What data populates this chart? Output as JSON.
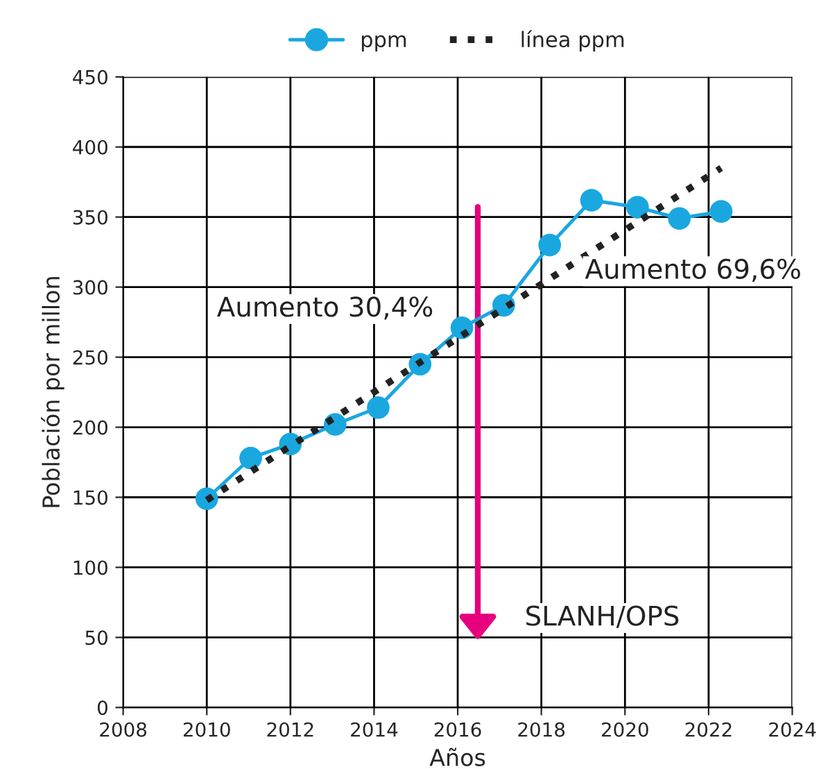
{
  "chart_data": {
    "type": "line",
    "xlabel": "Años",
    "ylabel": "Población por millon",
    "series": [
      {
        "name": "ppm",
        "color": "#1aa7e0",
        "marker": "circle",
        "line_style": "solid",
        "x": [
          2010.0,
          2011.05,
          2012.0,
          2013.07,
          2014.1,
          2015.1,
          2016.1,
          2017.1,
          2018.2,
          2019.2,
          2020.3,
          2021.3,
          2022.3
        ],
        "values": [
          149,
          178,
          188,
          202,
          214,
          245,
          271,
          287,
          330,
          362,
          357,
          349,
          354
        ]
      },
      {
        "name": "línea ppm",
        "color": "#222222",
        "marker": "none",
        "line_style": "dotted",
        "x": [
          2010.0,
          2022.3
        ],
        "values": [
          148,
          385
        ]
      }
    ],
    "annotations": [
      "Aumento 30,4%",
      "Aumento 69,6%",
      "SLANH/OPS"
    ],
    "xlim": [
      2008,
      2024
    ],
    "xticks": [
      2008,
      2010,
      2012,
      2014,
      2016,
      2018,
      2020,
      2022,
      2024
    ],
    "ylim": [
      0,
      450
    ],
    "yticks": [
      0,
      50,
      100,
      150,
      200,
      250,
      300,
      350,
      400,
      450
    ],
    "grid": true,
    "legend": "top"
  }
}
